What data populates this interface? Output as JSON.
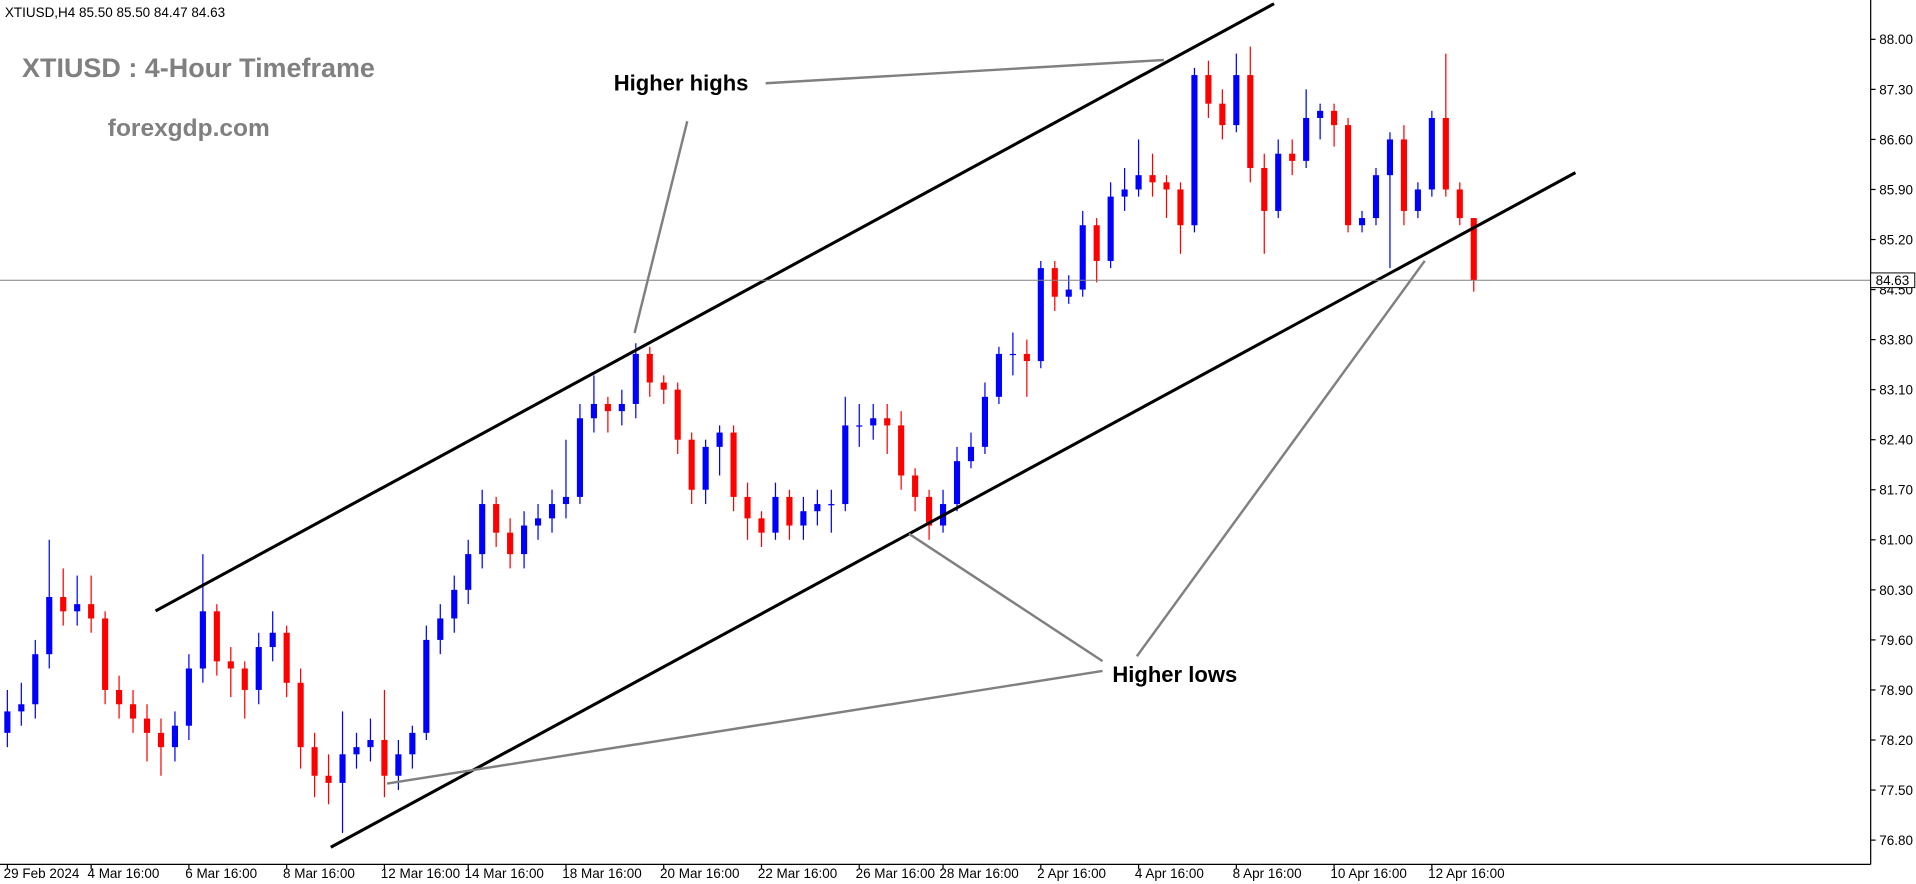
{
  "chart_data": {
    "type": "candlestick",
    "header": "XTIUSD,H4  85.50 85.50 84.47 84.63",
    "title": "XTIUSD : 4-Hour Timeframe",
    "subtitle": "forexgdp.com",
    "annotations": [
      "Higher highs",
      "Higher lows"
    ],
    "categories": [
      "29 Feb 2024",
      null,
      null,
      null,
      null,
      null,
      "4 Mar 16:00",
      null,
      null,
      null,
      null,
      null,
      null,
      "6 Mar 16:00",
      null,
      null,
      null,
      null,
      null,
      null,
      "8 Mar 16:00",
      null,
      null,
      null,
      null,
      null,
      null,
      "12 Mar 16:00",
      null,
      null,
      null,
      null,
      null,
      "14 Mar 16:00",
      null,
      null,
      null,
      null,
      null,
      null,
      "18 Mar 16:00",
      null,
      null,
      null,
      null,
      null,
      null,
      "20 Mar 16:00",
      null,
      null,
      null,
      null,
      null,
      null,
      "22 Mar 16:00",
      null,
      null,
      null,
      null,
      null,
      null,
      "26 Mar 16:00",
      null,
      null,
      null,
      null,
      null,
      "28 Mar 16:00",
      null,
      null,
      null,
      null,
      null,
      null,
      "2 Apr 16:00",
      null,
      null,
      null,
      null,
      null,
      null,
      "4 Apr 16:00",
      null,
      null,
      null,
      null,
      null,
      null,
      "8 Apr 16:00",
      null,
      null,
      null,
      null,
      null,
      null,
      "10 Apr 16:00",
      null,
      null,
      null,
      null,
      null,
      null,
      "12 Apr 16:00",
      null,
      null,
      null
    ],
    "ohlc": [
      [
        78.3,
        78.9,
        78.1,
        78.6
      ],
      [
        78.6,
        79.0,
        78.4,
        78.7
      ],
      [
        78.7,
        79.6,
        78.5,
        79.4
      ],
      [
        79.4,
        81.0,
        79.2,
        80.2
      ],
      [
        80.2,
        80.6,
        79.8,
        80.0
      ],
      [
        80.0,
        80.5,
        79.8,
        80.1
      ],
      [
        80.1,
        80.5,
        79.7,
        79.9
      ],
      [
        79.9,
        80.0,
        78.7,
        78.9
      ],
      [
        78.9,
        79.1,
        78.5,
        78.7
      ],
      [
        78.7,
        78.9,
        78.3,
        78.5
      ],
      [
        78.5,
        78.7,
        77.9,
        78.3
      ],
      [
        78.3,
        78.5,
        77.7,
        78.1
      ],
      [
        78.1,
        78.6,
        77.9,
        78.4
      ],
      [
        78.4,
        79.4,
        78.2,
        79.2
      ],
      [
        79.2,
        80.8,
        79.0,
        80.0
      ],
      [
        80.0,
        80.1,
        79.1,
        79.3
      ],
      [
        79.3,
        79.5,
        78.8,
        79.2
      ],
      [
        79.2,
        79.3,
        78.5,
        78.9
      ],
      [
        78.9,
        79.7,
        78.7,
        79.5
      ],
      [
        79.5,
        80.0,
        79.3,
        79.7
      ],
      [
        79.7,
        79.8,
        78.8,
        79.0
      ],
      [
        79.0,
        79.2,
        77.8,
        78.1
      ],
      [
        78.1,
        78.3,
        77.4,
        77.7
      ],
      [
        77.7,
        78.0,
        77.3,
        77.6
      ],
      [
        77.6,
        78.6,
        76.9,
        78.0
      ],
      [
        78.0,
        78.3,
        77.8,
        78.1
      ],
      [
        78.1,
        78.5,
        77.9,
        78.2
      ],
      [
        78.2,
        78.9,
        77.4,
        77.7
      ],
      [
        77.7,
        78.2,
        77.5,
        78.0
      ],
      [
        78.0,
        78.4,
        77.8,
        78.3
      ],
      [
        78.3,
        79.8,
        78.2,
        79.6
      ],
      [
        79.6,
        80.1,
        79.4,
        79.9
      ],
      [
        79.9,
        80.5,
        79.7,
        80.3
      ],
      [
        80.3,
        81.0,
        80.1,
        80.8
      ],
      [
        80.8,
        81.7,
        80.6,
        81.5
      ],
      [
        81.5,
        81.6,
        80.9,
        81.1
      ],
      [
        81.1,
        81.3,
        80.6,
        80.8
      ],
      [
        80.8,
        81.4,
        80.6,
        81.2
      ],
      [
        81.2,
        81.5,
        81.0,
        81.3
      ],
      [
        81.3,
        81.7,
        81.1,
        81.5
      ],
      [
        81.5,
        82.4,
        81.3,
        81.6
      ],
      [
        81.6,
        82.9,
        81.5,
        82.7
      ],
      [
        82.7,
        83.3,
        82.5,
        82.9
      ],
      [
        82.9,
        83.0,
        82.5,
        82.8
      ],
      [
        82.8,
        83.1,
        82.6,
        82.9
      ],
      [
        82.9,
        83.75,
        82.7,
        83.6
      ],
      [
        83.6,
        83.7,
        83.0,
        83.2
      ],
      [
        83.2,
        83.3,
        82.9,
        83.1
      ],
      [
        83.1,
        83.2,
        82.2,
        82.4
      ],
      [
        82.4,
        82.5,
        81.5,
        81.7
      ],
      [
        81.7,
        82.4,
        81.5,
        82.3
      ],
      [
        82.3,
        82.6,
        81.9,
        82.5
      ],
      [
        82.5,
        82.6,
        81.4,
        81.6
      ],
      [
        81.6,
        81.8,
        81.0,
        81.3
      ],
      [
        81.3,
        81.4,
        80.9,
        81.1
      ],
      [
        81.1,
        81.8,
        81.0,
        81.6
      ],
      [
        81.6,
        81.7,
        81.0,
        81.2
      ],
      [
        81.2,
        81.6,
        81.0,
        81.4
      ],
      [
        81.4,
        81.7,
        81.2,
        81.5
      ],
      [
        81.5,
        81.7,
        81.1,
        81.5
      ],
      [
        81.5,
        83.0,
        81.4,
        82.6
      ],
      [
        82.6,
        82.9,
        82.3,
        82.6
      ],
      [
        82.6,
        82.9,
        82.4,
        82.7
      ],
      [
        82.7,
        82.9,
        82.2,
        82.6
      ],
      [
        82.6,
        82.8,
        81.7,
        81.9
      ],
      [
        81.9,
        82.0,
        81.4,
        81.6
      ],
      [
        81.6,
        81.7,
        81.0,
        81.2
      ],
      [
        81.2,
        81.7,
        81.1,
        81.5
      ],
      [
        81.5,
        82.3,
        81.4,
        82.1
      ],
      [
        82.1,
        82.5,
        82.0,
        82.3
      ],
      [
        82.3,
        83.2,
        82.2,
        83.0
      ],
      [
        83.0,
        83.7,
        82.9,
        83.6
      ],
      [
        83.6,
        83.9,
        83.3,
        83.6
      ],
      [
        83.6,
        83.8,
        83.0,
        83.5
      ],
      [
        83.5,
        84.9,
        83.4,
        84.8
      ],
      [
        84.8,
        84.9,
        84.2,
        84.4
      ],
      [
        84.4,
        84.7,
        84.3,
        84.5
      ],
      [
        84.5,
        85.6,
        84.4,
        85.4
      ],
      [
        85.4,
        85.5,
        84.6,
        84.9
      ],
      [
        84.9,
        86.0,
        84.8,
        85.8
      ],
      [
        85.8,
        86.2,
        85.6,
        85.9
      ],
      [
        85.9,
        86.6,
        85.8,
        86.1
      ],
      [
        86.1,
        86.4,
        85.8,
        86.0
      ],
      [
        86.0,
        86.1,
        85.5,
        85.9
      ],
      [
        85.9,
        86.0,
        85.0,
        85.4
      ],
      [
        85.4,
        87.6,
        85.3,
        87.5
      ],
      [
        87.5,
        87.7,
        86.9,
        87.1
      ],
      [
        87.1,
        87.3,
        86.6,
        86.8
      ],
      [
        86.8,
        87.8,
        86.7,
        87.5
      ],
      [
        87.5,
        87.9,
        86.0,
        86.2
      ],
      [
        86.2,
        86.4,
        85.0,
        85.6
      ],
      [
        85.6,
        86.6,
        85.5,
        86.4
      ],
      [
        86.4,
        86.6,
        86.1,
        86.3
      ],
      [
        86.3,
        87.3,
        86.2,
        86.9
      ],
      [
        86.9,
        87.1,
        86.6,
        87.0
      ],
      [
        87.0,
        87.1,
        86.5,
        86.8
      ],
      [
        86.8,
        86.9,
        85.3,
        85.4
      ],
      [
        85.4,
        85.6,
        85.3,
        85.5
      ],
      [
        85.5,
        86.2,
        85.4,
        86.1
      ],
      [
        86.1,
        86.7,
        84.8,
        86.6
      ],
      [
        86.6,
        86.8,
        85.4,
        85.6
      ],
      [
        85.6,
        86.0,
        85.5,
        85.9
      ],
      [
        85.9,
        87.0,
        85.8,
        86.9
      ],
      [
        86.9,
        87.8,
        85.8,
        85.9
      ],
      [
        85.9,
        86.0,
        85.4,
        85.5
      ],
      [
        85.5,
        85.5,
        84.47,
        84.63
      ]
    ],
    "colors": {
      "up": "#0000ff",
      "down": "#ff0000"
    },
    "ylim": [
      76.46,
      88.55
    ],
    "yticks": [
      {
        "value": 88,
        "label": "88.00"
      },
      {
        "value": 87.3,
        "label": "87.30"
      },
      {
        "value": 86.6,
        "label": "86.60"
      },
      {
        "value": 85.9,
        "label": "85.90"
      },
      {
        "value": 85.2,
        "label": "85.20"
      },
      {
        "value": 84.5,
        "label": "84.50"
      },
      {
        "value": 83.8,
        "label": "83.80"
      },
      {
        "value": 83.1,
        "label": "83.10"
      },
      {
        "value": 82.4,
        "label": "82.40"
      },
      {
        "value": 81.7,
        "label": "81.70"
      },
      {
        "value": 81,
        "label": "81.00"
      },
      {
        "value": 80.3,
        "label": "80.30"
      },
      {
        "value": 79.6,
        "label": "79.60"
      },
      {
        "value": 78.9,
        "label": "78.90"
      },
      {
        "value": 78.2,
        "label": "78.20"
      },
      {
        "value": 77.5,
        "label": "77.50"
      },
      {
        "value": 76.8,
        "label": "76.80"
      }
    ],
    "current_price": {
      "value": 84.63,
      "label": "84.63"
    }
  }
}
